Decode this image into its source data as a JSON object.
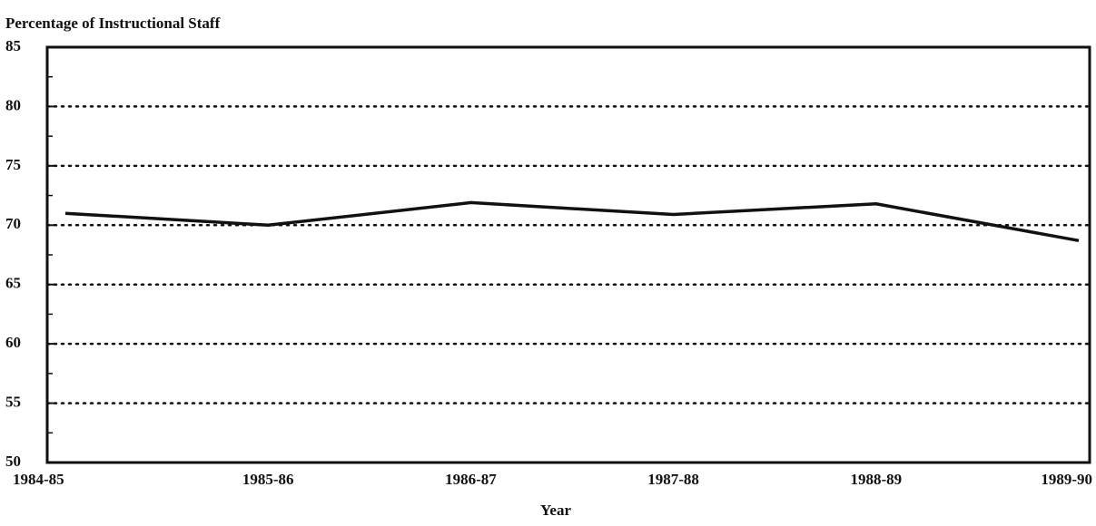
{
  "chart_data": {
    "type": "line",
    "y_axis_label": "Percentage of Instructional Staff",
    "x_axis_label": "Year",
    "categories": [
      "1984-85",
      "1985-86",
      "1986-87",
      "1987-88",
      "1988-89",
      "1989-90"
    ],
    "values": [
      71,
      70,
      71.9,
      70.9,
      71.8,
      68.7
    ],
    "color": "#111111",
    "ylim": [
      50,
      85
    ],
    "yticks": [
      50,
      55,
      60,
      65,
      70,
      75,
      80,
      85
    ],
    "minor_yticks": [
      52.5,
      57.5,
      62.5,
      67.5,
      72.5,
      77.5,
      82.5
    ],
    "grid": true
  }
}
